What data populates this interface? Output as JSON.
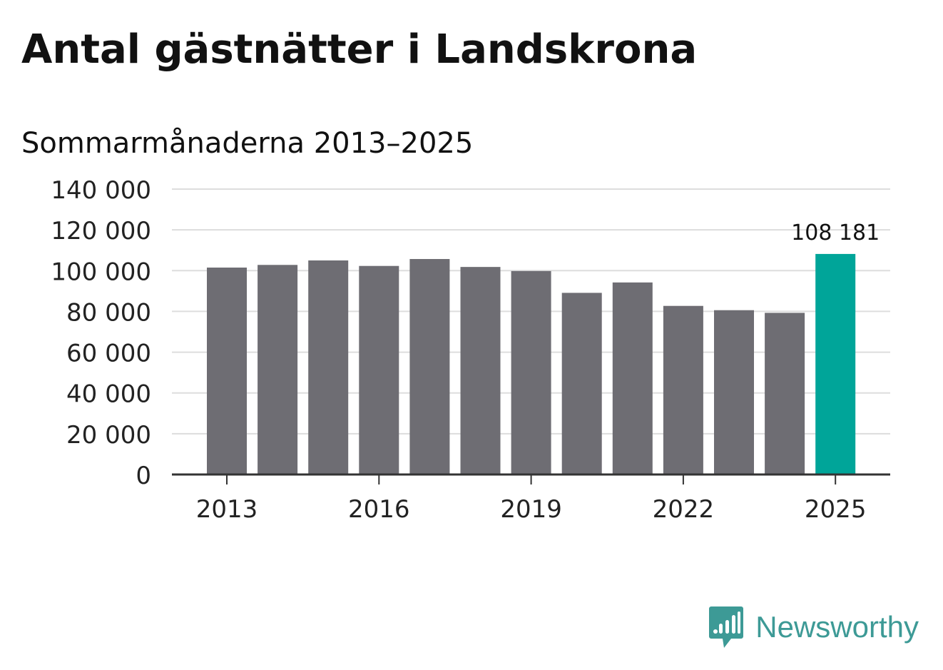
{
  "title": "Antal gästnätter i Landskrona",
  "subtitle": "Sommarmånaderna 2013–2025",
  "brand": {
    "name": "Newsworthy",
    "logo_icon": "newsworthy-logo-icon",
    "color": "#3d9a96"
  },
  "colors": {
    "bar": "#6e6d73",
    "highlight": "#00a599",
    "grid": "#dddddd",
    "axis": "#333333",
    "text": "#111111"
  },
  "chart_data": {
    "type": "bar",
    "categories": [
      "2013",
      "2014",
      "2015",
      "2016",
      "2017",
      "2018",
      "2019",
      "2020",
      "2021",
      "2022",
      "2023",
      "2024",
      "2025"
    ],
    "values": [
      101500,
      102800,
      105000,
      102300,
      105700,
      101800,
      99800,
      89100,
      94200,
      82700,
      80600,
      79300,
      108181
    ],
    "highlight_index": 12,
    "data_labels": [
      {
        "index": 12,
        "text": "108 181"
      }
    ],
    "x_tick_labels": [
      "2013",
      "2016",
      "2019",
      "2022",
      "2025"
    ],
    "y_ticks": [
      0,
      20000,
      40000,
      60000,
      80000,
      100000,
      120000,
      140000
    ],
    "y_tick_labels": [
      "0",
      "20 000",
      "40 000",
      "60 000",
      "80 000",
      "100 000",
      "120 000",
      "140 000"
    ],
    "ylim": [
      0,
      140000
    ],
    "grid": true,
    "legend": "none"
  }
}
